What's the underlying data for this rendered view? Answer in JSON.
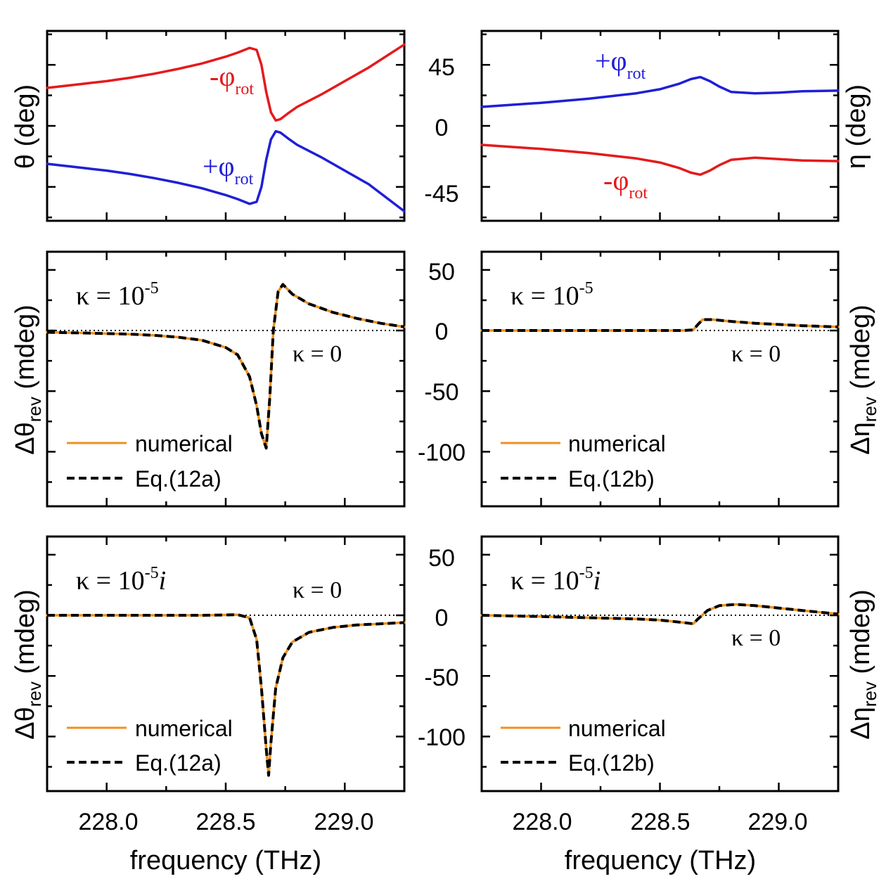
{
  "colors": {
    "red": "#e41a1c",
    "blue": "#1f1fd6",
    "orange": "#f0901e",
    "black": "#000000"
  },
  "shared": {
    "x_ticks": [
      "228.0",
      "228.5",
      "229.0"
    ],
    "x_tick_values": [
      228.0,
      228.5,
      229.0
    ],
    "xlabel": "frequency (THz)",
    "top_y_ticks": [
      "45",
      "0",
      "-45"
    ],
    "top_y_tick_values": [
      45,
      0,
      -45
    ],
    "lower_y_ticks": [
      "50",
      "0",
      "-50",
      "-100"
    ],
    "lower_y_tick_values": [
      50,
      0,
      -50,
      -100
    ]
  },
  "labels": {
    "theta_ylabel": "θ (deg)",
    "eta_ylabel": "η (deg)",
    "dtheta_base": "Δθ",
    "deta_base": "Δη",
    "rev_sub": "rev",
    "mdeg_unit": " (mdeg)",
    "phi_minus": "-φ",
    "phi_plus": "+φ",
    "rot_sub": "rot",
    "kappa_prefix": "κ = 10",
    "kappa_exp": "-5",
    "kappa_i": "i",
    "kappa_zero": "κ = 0",
    "legend_numerical": "numerical",
    "legend_eq12a": "Eq.(12a)",
    "legend_eq12b": "Eq.(12b)"
  },
  "chart_data": [
    {
      "id": "a",
      "type": "line",
      "ylabel": "θ (deg)",
      "xlim": [
        227.75,
        229.25
      ],
      "ylim": [
        -70,
        70
      ],
      "series": [
        {
          "name": "-φrot",
          "color": "red",
          "x": [
            227.75,
            227.9,
            228.0,
            228.1,
            228.2,
            228.3,
            228.4,
            228.5,
            228.55,
            228.6,
            228.63,
            228.65,
            228.67,
            228.69,
            228.71,
            228.73,
            228.76,
            228.8,
            228.9,
            229.0,
            229.1,
            229.25
          ],
          "y": [
            28,
            31,
            33,
            35.5,
            38.5,
            42,
            46,
            51,
            54,
            57.5,
            56,
            45,
            25,
            10,
            4,
            5,
            9,
            14,
            23,
            33,
            43,
            60
          ]
        },
        {
          "name": "+φrot",
          "color": "blue",
          "x": [
            227.75,
            227.9,
            228.0,
            228.1,
            228.2,
            228.3,
            228.4,
            228.5,
            228.55,
            228.6,
            228.63,
            228.65,
            228.67,
            228.69,
            228.71,
            228.73,
            228.76,
            228.8,
            228.9,
            229.0,
            229.1,
            229.25
          ],
          "y": [
            -28,
            -31,
            -33,
            -35.5,
            -38.5,
            -42,
            -46,
            -51,
            -54,
            -57.5,
            -56,
            -45,
            -25,
            -10,
            -4,
            -5,
            -9,
            -14,
            -23,
            -33,
            -43,
            -63
          ]
        }
      ]
    },
    {
      "id": "b",
      "type": "line",
      "ylabel": "η (deg)",
      "xlim": [
        227.75,
        229.25
      ],
      "ylim": [
        -70,
        70
      ],
      "series": [
        {
          "name": "+φrot",
          "color": "blue",
          "x": [
            227.75,
            228.0,
            228.2,
            228.4,
            228.5,
            228.58,
            228.63,
            228.67,
            228.71,
            228.75,
            228.8,
            228.9,
            229.0,
            229.1,
            229.25
          ],
          "y": [
            14,
            17,
            20,
            24,
            27,
            31,
            34.5,
            36,
            33,
            29,
            25,
            24,
            24.5,
            25.5,
            26
          ]
        },
        {
          "name": "-φrot",
          "color": "red",
          "x": [
            227.75,
            228.0,
            228.2,
            228.4,
            228.5,
            228.58,
            228.63,
            228.67,
            228.71,
            228.75,
            228.8,
            228.9,
            229.0,
            229.1,
            229.25
          ],
          "y": [
            -14,
            -17,
            -20,
            -24,
            -27,
            -31,
            -34.5,
            -36,
            -33,
            -29,
            -25,
            -23.5,
            -24.5,
            -25.5,
            -26
          ]
        }
      ]
    },
    {
      "id": "c",
      "type": "line",
      "ylabel": "Δθrev (mdeg)",
      "xlim": [
        227.75,
        229.25
      ],
      "ylim": [
        -145,
        65
      ],
      "series": [
        {
          "name": "numerical",
          "color": "orange",
          "x": [
            227.75,
            227.9,
            228.0,
            228.1,
            228.2,
            228.3,
            228.4,
            228.5,
            228.55,
            228.6,
            228.63,
            228.65,
            228.67,
            228.685,
            228.7,
            228.72,
            228.74,
            228.78,
            228.85,
            228.95,
            229.05,
            229.15,
            229.25
          ],
          "y": [
            -1.5,
            -2,
            -2.5,
            -3,
            -4,
            -5.5,
            -8,
            -14,
            -20,
            -38,
            -62,
            -85,
            -97,
            -55,
            0,
            32,
            38,
            30,
            22,
            15,
            10,
            6,
            3
          ]
        },
        {
          "name": "Eq.(12a)",
          "color": "black",
          "dash": true,
          "x": [
            227.75,
            227.9,
            228.0,
            228.1,
            228.2,
            228.3,
            228.4,
            228.5,
            228.55,
            228.6,
            228.63,
            228.65,
            228.67,
            228.685,
            228.7,
            228.72,
            228.74,
            228.78,
            228.85,
            228.95,
            229.05,
            229.15,
            229.25
          ],
          "y": [
            -1.5,
            -2,
            -2.5,
            -3,
            -4,
            -5.5,
            -8,
            -14,
            -20,
            -38,
            -62,
            -85,
            -97,
            -55,
            0,
            32,
            38,
            30,
            22,
            15,
            10,
            6,
            3
          ]
        }
      ],
      "reference_line": {
        "name": "κ = 0",
        "y": 0
      }
    },
    {
      "id": "d",
      "type": "line",
      "ylabel": "Δηrev (mdeg)",
      "xlim": [
        227.75,
        229.25
      ],
      "ylim": [
        -145,
        65
      ],
      "series": [
        {
          "name": "numerical",
          "color": "orange",
          "x": [
            227.75,
            228.0,
            228.3,
            228.5,
            228.6,
            228.64,
            228.66,
            228.68,
            228.72,
            228.8,
            228.9,
            229.0,
            229.1,
            229.25
          ],
          "y": [
            0,
            0,
            0,
            0,
            0,
            0.5,
            5,
            9,
            9,
            7.5,
            6,
            5,
            4,
            3
          ]
        },
        {
          "name": "Eq.(12b)",
          "color": "black",
          "dash": true,
          "x": [
            227.75,
            228.0,
            228.3,
            228.5,
            228.6,
            228.64,
            228.66,
            228.68,
            228.72,
            228.8,
            228.9,
            229.0,
            229.1,
            229.25
          ],
          "y": [
            0,
            0,
            0,
            0,
            0,
            0.5,
            5,
            9,
            9,
            7.5,
            6,
            5,
            4,
            3
          ]
        }
      ],
      "reference_line": {
        "name": "κ = 0",
        "y": 0
      }
    },
    {
      "id": "e",
      "type": "line",
      "ylabel": "Δθrev (mdeg)",
      "xlim": [
        227.75,
        229.25
      ],
      "ylim": [
        -145,
        65
      ],
      "series": [
        {
          "name": "numerical",
          "color": "orange",
          "x": [
            227.75,
            228.0,
            228.2,
            228.4,
            228.5,
            228.55,
            228.6,
            228.63,
            228.65,
            228.67,
            228.68,
            228.69,
            228.71,
            228.74,
            228.78,
            228.85,
            228.95,
            229.05,
            229.15,
            229.25
          ],
          "y": [
            0,
            0,
            0,
            0,
            0.3,
            0.5,
            -2,
            -20,
            -60,
            -110,
            -132,
            -105,
            -60,
            -35,
            -22,
            -14,
            -10,
            -8,
            -7,
            -6
          ]
        },
        {
          "name": "Eq.(12a)",
          "color": "black",
          "dash": true,
          "x": [
            227.75,
            228.0,
            228.2,
            228.4,
            228.5,
            228.55,
            228.6,
            228.63,
            228.65,
            228.67,
            228.68,
            228.69,
            228.71,
            228.74,
            228.78,
            228.85,
            228.95,
            229.05,
            229.15,
            229.25
          ],
          "y": [
            0,
            0,
            0,
            0,
            0.3,
            0.5,
            -2,
            -20,
            -60,
            -110,
            -132,
            -105,
            -60,
            -35,
            -22,
            -14,
            -10,
            -8,
            -7,
            -6
          ]
        }
      ],
      "reference_line": {
        "name": "κ = 0",
        "y": 0
      }
    },
    {
      "id": "f",
      "type": "line",
      "ylabel": "Δηrev (mdeg)",
      "xlim": [
        227.75,
        229.25
      ],
      "ylim": [
        -145,
        65
      ],
      "series": [
        {
          "name": "numerical",
          "color": "orange",
          "x": [
            227.75,
            228.0,
            228.2,
            228.4,
            228.5,
            228.6,
            228.64,
            228.66,
            228.7,
            228.75,
            228.82,
            228.9,
            229.0,
            229.1,
            229.25
          ],
          "y": [
            0,
            -1,
            -2,
            -3,
            -4,
            -6,
            -7,
            -3,
            4,
            8,
            9,
            8,
            6,
            4,
            1
          ]
        },
        {
          "name": "Eq.(12b)",
          "color": "black",
          "dash": true,
          "x": [
            227.75,
            228.0,
            228.2,
            228.4,
            228.5,
            228.6,
            228.64,
            228.66,
            228.7,
            228.75,
            228.82,
            228.9,
            229.0,
            229.1,
            229.25
          ],
          "y": [
            0,
            -1,
            -2,
            -3,
            -4,
            -6,
            -7,
            -3,
            4,
            8,
            9,
            8,
            6,
            4,
            1
          ]
        }
      ],
      "reference_line": {
        "name": "κ = 0",
        "y": 0
      }
    }
  ]
}
